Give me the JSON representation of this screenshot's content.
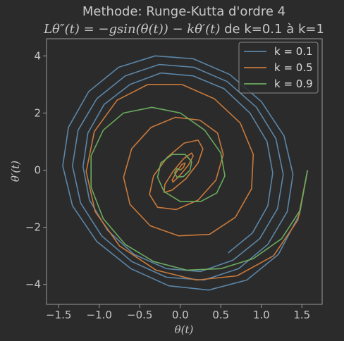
{
  "chart_data": {
    "type": "line",
    "title": "Methode: Runge-Kutta d'ordre 4",
    "subtitle_parts": {
      "lhs": "Lθ″(t) = −gsin(θ(t)) − kθ′(t)",
      "rest": " de k=0.1 à k=1"
    },
    "xlabel": "θ(t)",
    "ylabel": "θ′(t)",
    "xlim": [
      -1.65,
      1.75
    ],
    "ylim": [
      -4.7,
      4.6
    ],
    "xticks": [
      -1.5,
      -1.0,
      -0.5,
      0.0,
      0.5,
      1.0,
      1.5
    ],
    "xtick_labels": [
      "−1.5",
      "−1.0",
      "−0.5",
      "0.0",
      "0.5",
      "1.0",
      "1.5"
    ],
    "yticks": [
      -4,
      -2,
      0,
      2,
      4
    ],
    "ytick_labels": [
      "−4",
      "−2",
      "0",
      "2",
      "4"
    ],
    "grid": false,
    "legend_position": "top-right",
    "series": [
      {
        "name": "k = 0.1",
        "color": "#5b86a8",
        "x": [
          1.57,
          1.47,
          1.21,
          0.82,
          0.35,
          -0.14,
          -0.61,
          -1.03,
          -1.33,
          -1.45,
          -1.38,
          -1.13,
          -0.76,
          -0.31,
          0.16,
          0.61,
          1.0,
          1.28,
          1.39,
          1.32,
          1.08,
          0.72,
          0.29,
          -0.17,
          -0.6,
          -0.97,
          -1.23,
          -1.33,
          -1.26,
          -1.03,
          -0.68,
          -0.26,
          0.17,
          0.58,
          0.94,
          1.18,
          1.27,
          1.2,
          0.98,
          0.65,
          0.25,
          -0.17,
          -0.57,
          -0.9,
          -1.12,
          -1.2,
          -1.14,
          -0.94,
          -0.62,
          -0.24,
          0.16,
          0.54,
          0.86,
          1.07,
          1.14,
          1.08,
          0.89,
          0.59
        ],
        "y": [
          0.0,
          -1.55,
          -2.95,
          -3.85,
          -4.2,
          -4.05,
          -3.45,
          -2.5,
          -1.25,
          0.15,
          1.5,
          2.75,
          3.6,
          4.0,
          3.9,
          3.35,
          2.4,
          1.2,
          -0.15,
          -1.45,
          -2.6,
          -3.45,
          -3.85,
          -3.75,
          -3.2,
          -2.3,
          -1.15,
          0.15,
          1.4,
          2.5,
          3.3,
          3.7,
          3.6,
          3.1,
          2.2,
          1.1,
          -0.15,
          -1.35,
          -2.4,
          -3.15,
          -3.55,
          -3.45,
          -2.95,
          -2.1,
          -1.05,
          0.12,
          1.3,
          2.3,
          3.0,
          3.4,
          3.3,
          2.85,
          2.0,
          1.0,
          -0.1,
          -1.25,
          -2.2,
          -2.9
        ]
      },
      {
        "name": "k = 0.5",
        "color": "#c9793a",
        "x": [
          1.57,
          1.45,
          1.15,
          0.7,
          0.2,
          -0.3,
          -0.75,
          -1.05,
          -1.16,
          -1.06,
          -0.78,
          -0.4,
          0.02,
          0.42,
          0.74,
          0.9,
          0.88,
          0.68,
          0.36,
          -0.02,
          -0.37,
          -0.62,
          -0.7,
          -0.6,
          -0.36,
          -0.06,
          0.24,
          0.46,
          0.53,
          0.44,
          0.22,
          -0.05,
          -0.28,
          -0.38,
          -0.33,
          -0.16,
          0.05,
          0.22,
          0.28,
          0.22,
          0.07,
          -0.1,
          -0.2,
          -0.19,
          -0.09,
          0.04,
          0.14,
          0.16,
          0.1,
          -0.01,
          -0.09,
          -0.1,
          -0.05,
          0.02,
          0.06,
          0.04,
          0.0
        ],
        "y": [
          0.0,
          -1.75,
          -3.0,
          -3.7,
          -3.85,
          -3.5,
          -2.65,
          -1.45,
          -0.05,
          1.35,
          2.45,
          3.0,
          3.0,
          2.5,
          1.65,
          0.55,
          -0.65,
          -1.65,
          -2.25,
          -2.3,
          -1.95,
          -1.2,
          -0.25,
          0.75,
          1.5,
          1.85,
          1.75,
          1.3,
          0.55,
          -0.35,
          -1.05,
          -1.38,
          -1.3,
          -0.85,
          -0.2,
          0.45,
          0.95,
          1.05,
          0.75,
          0.25,
          -0.3,
          -0.7,
          -0.78,
          -0.5,
          -0.05,
          0.4,
          0.6,
          0.5,
          0.18,
          -0.2,
          -0.42,
          -0.35,
          -0.08,
          0.2,
          0.25,
          0.1,
          0.0
        ]
      },
      {
        "name": "k = 0.9",
        "color": "#6aaa5e",
        "x": [
          1.57,
          1.48,
          1.25,
          0.9,
          0.5,
          0.08,
          -0.33,
          -0.68,
          -0.95,
          -1.1,
          -1.1,
          -0.95,
          -0.7,
          -0.35,
          0.0,
          0.3,
          0.5,
          0.55,
          0.45,
          0.25,
          0.0,
          -0.2,
          -0.28,
          -0.24,
          -0.1,
          0.06,
          0.14,
          0.12,
          0.04,
          -0.04,
          -0.07,
          -0.04,
          0.0
        ],
        "y": [
          0.0,
          -1.4,
          -2.4,
          -3.1,
          -3.45,
          -3.5,
          -3.2,
          -2.6,
          -1.7,
          -0.6,
          0.5,
          1.4,
          2.0,
          2.2,
          2.0,
          1.4,
          0.6,
          -0.2,
          -0.8,
          -1.1,
          -1.1,
          -0.75,
          -0.25,
          0.25,
          0.55,
          0.55,
          0.3,
          0.0,
          -0.22,
          -0.25,
          -0.1,
          0.05,
          0.0
        ]
      }
    ]
  }
}
